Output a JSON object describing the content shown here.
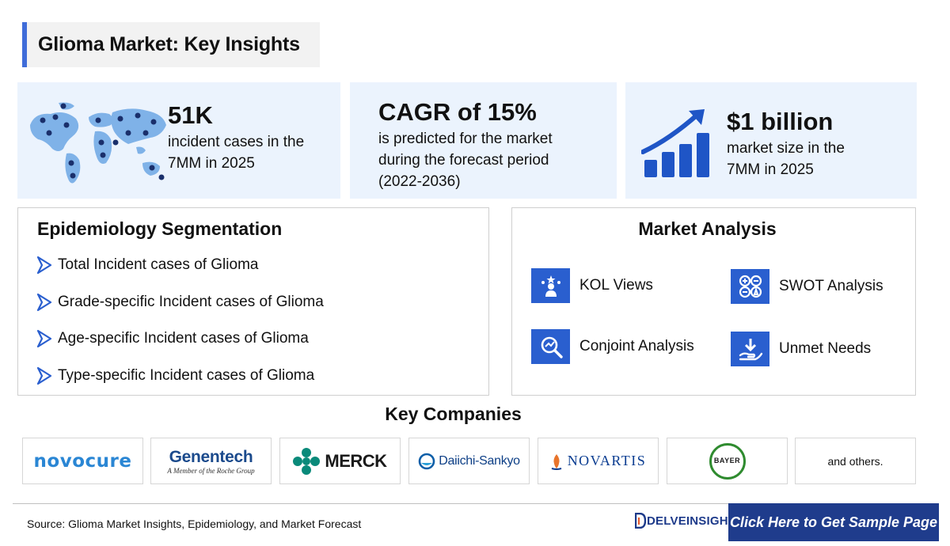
{
  "header": {
    "title": "Glioma Market: Key Insights"
  },
  "stats": [
    {
      "big": "51K",
      "line1": "incident cases in the",
      "line2": "7MM in 2025"
    },
    {
      "big": "CAGR of 15%",
      "line1": "is predicted for the market",
      "line2": "during the forecast period",
      "line3": "(2022-2036)"
    },
    {
      "big": "$1 billion",
      "line1": "market size in the",
      "line2": "7MM in 2025"
    }
  ],
  "epidemiology": {
    "title": "Epidemiology Segmentation",
    "items": [
      "Total Incident cases of Glioma",
      "Grade-specific Incident cases of Glioma",
      "Age-specific Incident cases of Glioma",
      "Type-specific Incident cases of Glioma"
    ]
  },
  "market_analysis": {
    "title": "Market Analysis",
    "items": [
      "KOL Views",
      "SWOT Analysis",
      "Conjoint Analysis",
      "Unmet Needs"
    ]
  },
  "companies": {
    "title": "Key Companies",
    "novocure": "novocure",
    "genentech": "Genentech",
    "genentech_sub": "A Member of the Roche Group",
    "merck": "MERCK",
    "daiichi": "Daiichi-Sankyo",
    "novartis": "NOVARTIS",
    "bayer": "BAYER",
    "others": "and others."
  },
  "footer": {
    "source": "Source: Glioma Market Insights, Epidemiology, and Market Forecast",
    "brand": "DELVEINSIGHT",
    "cta": "Click Here to Get Sample Page"
  },
  "colors": {
    "accent": "#3f6cd9",
    "icon_blue": "#2a5fcf",
    "navy": "#1f3c8c",
    "stat_bg": "#ebf3fd"
  }
}
